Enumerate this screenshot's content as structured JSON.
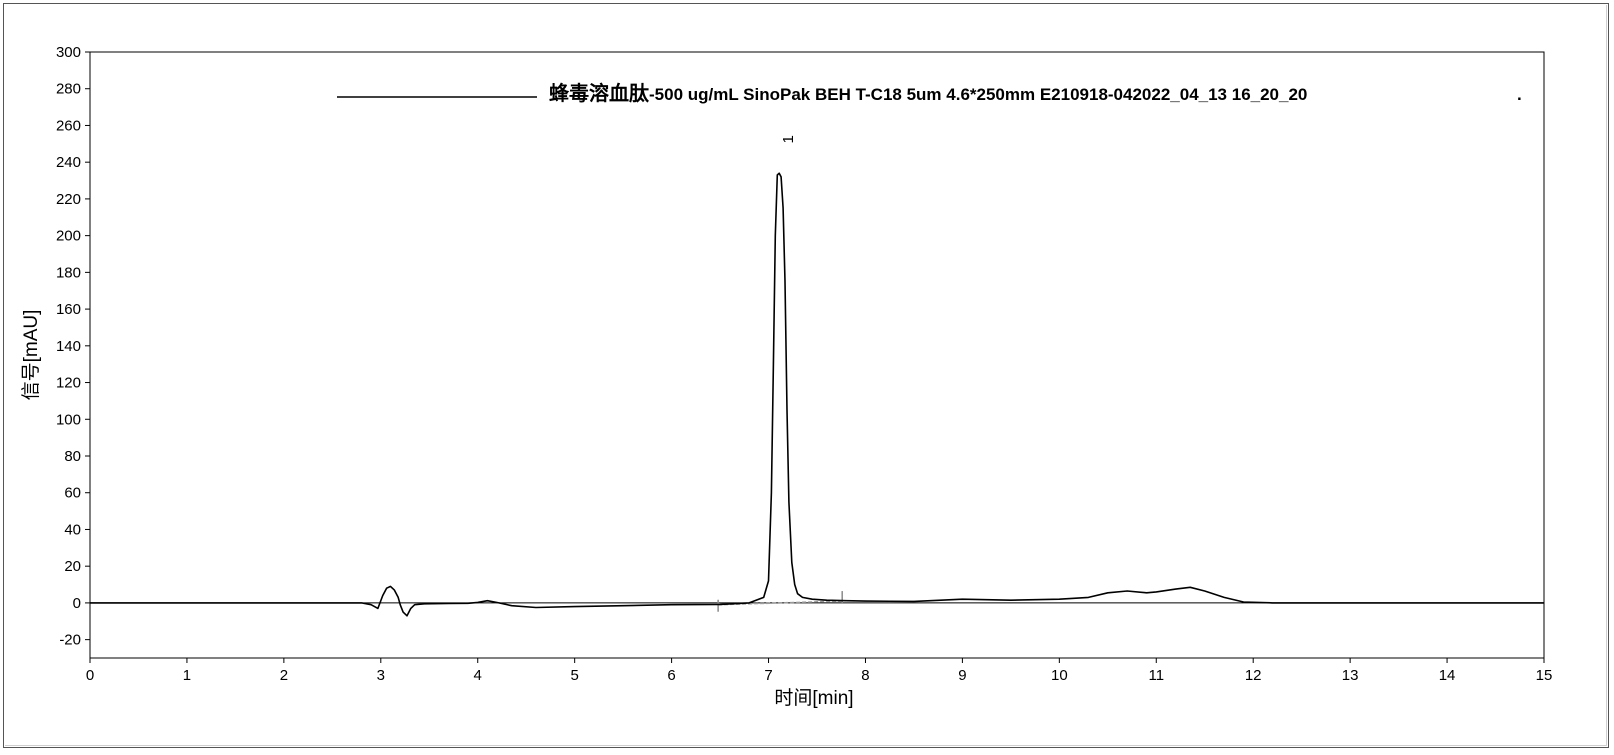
{
  "chart_data": {
    "type": "line",
    "xlabel": "时间[min]",
    "ylabel": "信号[mAU]",
    "xlim": [
      0,
      15
    ],
    "ylim": [
      -30,
      300
    ],
    "xticks": [
      0,
      1,
      2,
      3,
      4,
      5,
      6,
      7,
      8,
      9,
      10,
      11,
      12,
      13,
      14,
      15
    ],
    "yticks": [
      -20,
      0,
      20,
      40,
      60,
      80,
      100,
      120,
      140,
      160,
      180,
      200,
      220,
      240,
      260,
      280,
      300
    ],
    "grid": false,
    "legend": {
      "position": "top",
      "title_bold": "蜂毒溶血肽",
      "title_rest": "-500 ug/mL SinoPak BEH T-C18 5um 4.6*250mm E210918-042022_04_13 16_20_20",
      "trailing": "."
    },
    "zero_line": 0,
    "peaks": [
      {
        "label": "1",
        "x": 7.13,
        "y": 235
      }
    ],
    "baseline_marks": {
      "start_x": 6.48,
      "end_x": 7.76
    },
    "series": [
      {
        "color": "#000000",
        "x": [
          2.8,
          2.9,
          2.97,
          3.02,
          3.06,
          3.1,
          3.14,
          3.18,
          3.2,
          3.23,
          3.27,
          3.31,
          3.35,
          3.45,
          3.7,
          3.9,
          4.0,
          4.1,
          4.2,
          4.35,
          4.6,
          5.0,
          5.5,
          6.0,
          6.5,
          6.8,
          6.95,
          7.0,
          7.03,
          7.05,
          7.07,
          7.09,
          7.11,
          7.13,
          7.15,
          7.17,
          7.19,
          7.21,
          7.24,
          7.27,
          7.3,
          7.35,
          7.45,
          7.6,
          7.8,
          8.0,
          8.5,
          9.0,
          9.5,
          10.0,
          10.3,
          10.5,
          10.7,
          10.9,
          11.0,
          11.2,
          11.35,
          11.5,
          11.7,
          11.9,
          12.2,
          15.0
        ],
        "y": [
          0,
          -1,
          -3,
          4,
          8,
          9,
          7,
          3,
          -1,
          -5,
          -7,
          -3,
          -1,
          -0.5,
          -0.3,
          -0.2,
          0.3,
          1.2,
          0.2,
          -1.5,
          -2.5,
          -2,
          -1.5,
          -1,
          -0.8,
          0,
          3,
          12,
          60,
          130,
          200,
          233,
          234,
          232,
          215,
          175,
          105,
          55,
          22,
          10,
          5,
          3,
          2,
          1.5,
          1.2,
          1,
          0.8,
          2,
          1.5,
          2,
          3,
          5.5,
          6.5,
          5.5,
          6,
          7.5,
          8.5,
          6.5,
          3,
          0.5,
          0,
          0
        ]
      }
    ]
  }
}
